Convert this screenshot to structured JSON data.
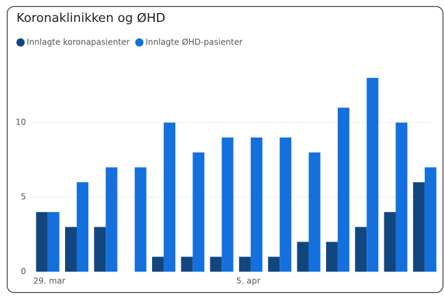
{
  "chart_data": {
    "type": "bar",
    "title": "Koronaklinikken og ØHD",
    "categories": [
      "29. mar",
      null,
      null,
      null,
      null,
      null,
      null,
      "5. apr",
      null,
      null,
      null,
      null,
      null,
      null
    ],
    "series": [
      {
        "name": "Innlagte koronapasienter",
        "color": "#12467f",
        "values": [
          4,
          3,
          3,
          0,
          1,
          1,
          1,
          1,
          1,
          2,
          2,
          3,
          4,
          6
        ]
      },
      {
        "name": "Innlagte ØHD-pasienter",
        "color": "#1470dd",
        "values": [
          4,
          6,
          7,
          7,
          10,
          8,
          9,
          9,
          9,
          8,
          11,
          13,
          10,
          7
        ]
      }
    ],
    "ylim": [
      0,
      14
    ],
    "yticks": [
      0,
      5,
      10
    ],
    "grid": true,
    "legend": "top-left"
  }
}
